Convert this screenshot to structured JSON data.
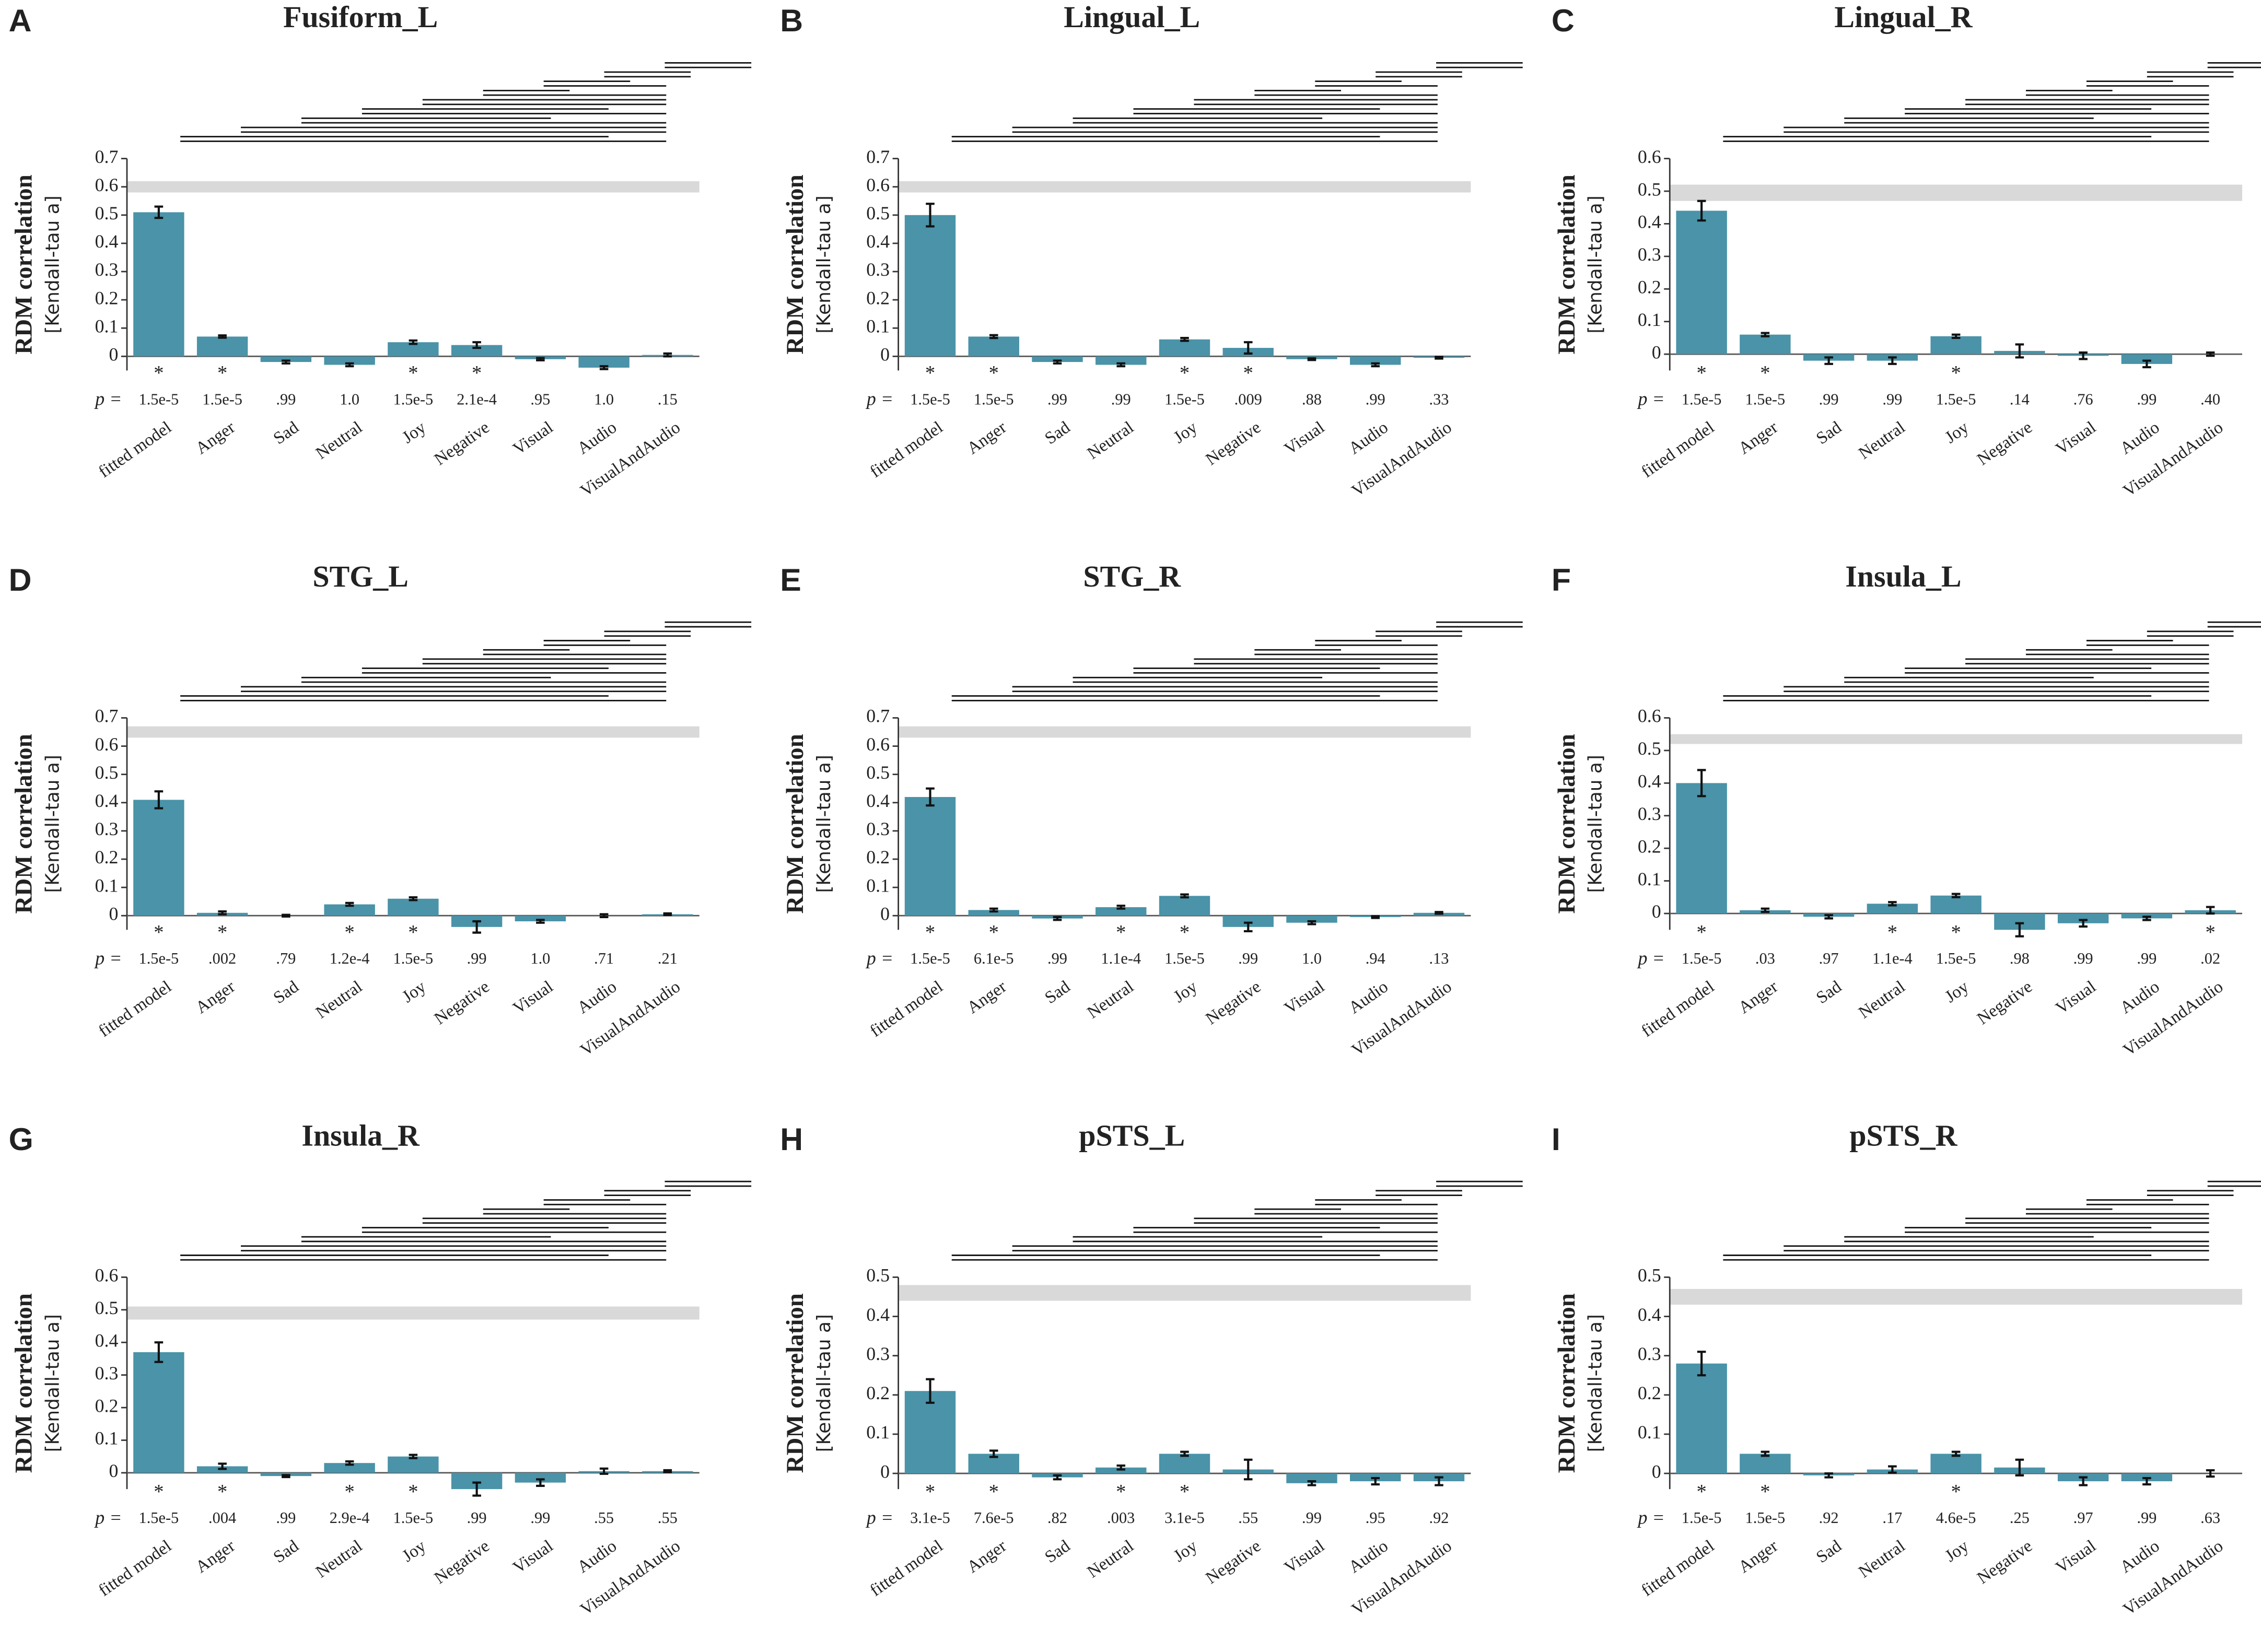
{
  "chart_data": [
    {
      "type": "bar",
      "panel": "A",
      "title": "Fusiform_L",
      "ylabel": "RDM correlation",
      "ylabel2": "[Kendall-tau a]",
      "p_prefix": "p =",
      "color": "#4a93a8",
      "categories": [
        "fitted model",
        "Anger",
        "Sad",
        "Neutral",
        "Joy",
        "Negative",
        "Visual",
        "Audio",
        "VisualAndAudio"
      ],
      "values": [
        0.51,
        0.07,
        -0.02,
        -0.03,
        0.05,
        0.04,
        -0.01,
        -0.04,
        0.005
      ],
      "errors": [
        0.02,
        0.004,
        0.005,
        0.005,
        0.006,
        0.01,
        0.004,
        0.005,
        0.005
      ],
      "stars": [
        "*",
        "*",
        null,
        null,
        "*",
        "*",
        null,
        null,
        null
      ],
      "p_labels": [
        "1.5e-5",
        "1.5e-5",
        ".99",
        "1.0",
        "1.5e-5",
        "2.1e-4",
        ".95",
        "1.0",
        ".15"
      ],
      "noise_ceiling": [
        0.58,
        0.62
      ],
      "ylim": [
        -0.05,
        0.7
      ],
      "yticks": [
        0,
        0.1,
        0.2,
        0.3,
        0.4,
        0.5,
        0.6,
        0.7
      ]
    },
    {
      "type": "bar",
      "panel": "B",
      "title": "Lingual_L",
      "ylabel": "RDM correlation",
      "ylabel2": "[Kendall-tau a]",
      "p_prefix": "p =",
      "color": "#4a93a8",
      "categories": [
        "fitted model",
        "Anger",
        "Sad",
        "Neutral",
        "Joy",
        "Negative",
        "Visual",
        "Audio",
        "VisualAndAudio"
      ],
      "values": [
        0.5,
        0.07,
        -0.02,
        -0.03,
        0.06,
        0.03,
        -0.01,
        -0.03,
        -0.005
      ],
      "errors": [
        0.04,
        0.005,
        0.005,
        0.005,
        0.005,
        0.02,
        0.003,
        0.005,
        0.003
      ],
      "stars": [
        "*",
        "*",
        null,
        null,
        "*",
        "*",
        null,
        null,
        null
      ],
      "p_labels": [
        "1.5e-5",
        "1.5e-5",
        ".99",
        ".99",
        "1.5e-5",
        ".009",
        ".88",
        ".99",
        ".33"
      ],
      "noise_ceiling": [
        0.58,
        0.62
      ],
      "ylim": [
        -0.05,
        0.7
      ],
      "yticks": [
        0,
        0.1,
        0.2,
        0.3,
        0.4,
        0.5,
        0.6,
        0.7
      ]
    },
    {
      "type": "bar",
      "panel": "C",
      "title": "Lingual_R",
      "ylabel": "RDM correlation",
      "ylabel2": "[Kendall-tau a]",
      "p_prefix": "p =",
      "color": "#4a93a8",
      "categories": [
        "fitted model",
        "Anger",
        "Sad",
        "Neutral",
        "Joy",
        "Negative",
        "Visual",
        "Audio",
        "VisualAndAudio"
      ],
      "values": [
        0.44,
        0.06,
        -0.02,
        -0.02,
        0.055,
        0.01,
        -0.005,
        -0.03,
        0
      ],
      "errors": [
        0.03,
        0.005,
        0.01,
        0.01,
        0.005,
        0.02,
        0.01,
        0.01,
        0.005
      ],
      "stars": [
        "*",
        "*",
        null,
        null,
        "*",
        null,
        null,
        null,
        null
      ],
      "p_labels": [
        "1.5e-5",
        "1.5e-5",
        ".99",
        ".99",
        "1.5e-5",
        ".14",
        ".76",
        ".99",
        ".40"
      ],
      "noise_ceiling": [
        0.47,
        0.52
      ],
      "ylim": [
        -0.05,
        0.6
      ],
      "yticks": [
        0,
        0.1,
        0.2,
        0.3,
        0.4,
        0.5,
        0.6
      ]
    },
    {
      "type": "bar",
      "panel": "D",
      "title": "STG_L",
      "ylabel": "RDM correlation",
      "ylabel2": "[Kendall-tau a]",
      "p_prefix": "p =",
      "color": "#4a93a8",
      "categories": [
        "fitted model",
        "Anger",
        "Sad",
        "Neutral",
        "Joy",
        "Negative",
        "Visual",
        "Audio",
        "VisualAndAudio"
      ],
      "values": [
        0.41,
        0.01,
        0,
        0.04,
        0.06,
        -0.04,
        -0.02,
        0,
        0.005
      ],
      "errors": [
        0.03,
        0.005,
        0.003,
        0.005,
        0.005,
        0.02,
        0.005,
        0.005,
        0.003
      ],
      "stars": [
        "*",
        "*",
        null,
        "*",
        "*",
        null,
        null,
        null,
        null
      ],
      "p_labels": [
        "1.5e-5",
        ".002",
        ".79",
        "1.2e-4",
        "1.5e-5",
        ".99",
        "1.0",
        ".71",
        ".21"
      ],
      "noise_ceiling": [
        0.63,
        0.67
      ],
      "ylim": [
        -0.05,
        0.7
      ],
      "yticks": [
        0,
        0.1,
        0.2,
        0.3,
        0.4,
        0.5,
        0.6,
        0.7
      ]
    },
    {
      "type": "bar",
      "panel": "E",
      "title": "STG_R",
      "ylabel": "RDM correlation",
      "ylabel2": "[Kendall-tau a]",
      "p_prefix": "p =",
      "color": "#4a93a8",
      "categories": [
        "fitted model",
        "Anger",
        "Sad",
        "Neutral",
        "Joy",
        "Negative",
        "Visual",
        "Audio",
        "VisualAndAudio"
      ],
      "values": [
        0.42,
        0.02,
        -0.01,
        0.03,
        0.07,
        -0.04,
        -0.025,
        -0.005,
        0.01
      ],
      "errors": [
        0.03,
        0.005,
        0.005,
        0.005,
        0.005,
        0.015,
        0.005,
        0.003,
        0.003
      ],
      "stars": [
        "*",
        "*",
        null,
        "*",
        "*",
        null,
        null,
        null,
        null
      ],
      "p_labels": [
        "1.5e-5",
        "6.1e-5",
        ".99",
        "1.1e-4",
        "1.5e-5",
        ".99",
        "1.0",
        ".94",
        ".13"
      ],
      "noise_ceiling": [
        0.63,
        0.67
      ],
      "ylim": [
        -0.05,
        0.7
      ],
      "yticks": [
        0,
        0.1,
        0.2,
        0.3,
        0.4,
        0.5,
        0.6,
        0.7
      ]
    },
    {
      "type": "bar",
      "panel": "F",
      "title": "Insula_L",
      "ylabel": "RDM correlation",
      "ylabel2": "[Kendall-tau a]",
      "p_prefix": "p =",
      "color": "#4a93a8",
      "categories": [
        "fitted model",
        "Anger",
        "Sad",
        "Neutral",
        "Joy",
        "Negative",
        "Visual",
        "Audio",
        "VisualAndAudio"
      ],
      "values": [
        0.4,
        0.01,
        -0.01,
        0.03,
        0.055,
        -0.05,
        -0.03,
        -0.015,
        0.01
      ],
      "errors": [
        0.04,
        0.005,
        0.005,
        0.005,
        0.005,
        0.02,
        0.01,
        0.005,
        0.01
      ],
      "stars": [
        "*",
        null,
        null,
        "*",
        "*",
        null,
        null,
        null,
        "*"
      ],
      "p_labels": [
        "1.5e-5",
        ".03",
        ".97",
        "1.1e-4",
        "1.5e-5",
        ".98",
        ".99",
        ".99",
        ".02"
      ],
      "noise_ceiling": [
        0.52,
        0.55
      ],
      "ylim": [
        -0.05,
        0.6
      ],
      "yticks": [
        0,
        0.1,
        0.2,
        0.3,
        0.4,
        0.5,
        0.6
      ]
    },
    {
      "type": "bar",
      "panel": "G",
      "title": "Insula_R",
      "ylabel": "RDM correlation",
      "ylabel2": "[Kendall-tau a]",
      "p_prefix": "p =",
      "color": "#4a93a8",
      "categories": [
        "fitted model",
        "Anger",
        "Sad",
        "Neutral",
        "Joy",
        "Negative",
        "Visual",
        "Audio",
        "VisualAndAudio"
      ],
      "values": [
        0.37,
        0.02,
        -0.01,
        0.03,
        0.05,
        -0.05,
        -0.03,
        0.005,
        0.005
      ],
      "errors": [
        0.03,
        0.008,
        0.003,
        0.005,
        0.005,
        0.02,
        0.01,
        0.008,
        0.003
      ],
      "stars": [
        "*",
        "*",
        null,
        "*",
        "*",
        null,
        null,
        null,
        null
      ],
      "p_labels": [
        "1.5e-5",
        ".004",
        ".99",
        "2.9e-4",
        "1.5e-5",
        ".99",
        ".99",
        ".55",
        ".55"
      ],
      "noise_ceiling": [
        0.47,
        0.51
      ],
      "ylim": [
        -0.05,
        0.6
      ],
      "yticks": [
        0,
        0.1,
        0.2,
        0.3,
        0.4,
        0.5,
        0.6
      ]
    },
    {
      "type": "bar",
      "panel": "H",
      "title": "pSTS_L",
      "ylabel": "RDM correlation",
      "ylabel2": "[Kendall-tau a]",
      "p_prefix": "p =",
      "color": "#4a93a8",
      "categories": [
        "fitted model",
        "Anger",
        "Sad",
        "Neutral",
        "Joy",
        "Negative",
        "Visual",
        "Audio",
        "VisualAndAudio"
      ],
      "values": [
        0.21,
        0.05,
        -0.01,
        0.015,
        0.05,
        0.01,
        -0.025,
        -0.02,
        -0.02
      ],
      "errors": [
        0.03,
        0.008,
        0.005,
        0.005,
        0.005,
        0.025,
        0.005,
        0.008,
        0.01
      ],
      "stars": [
        "*",
        "*",
        null,
        "*",
        "*",
        null,
        null,
        null,
        null
      ],
      "p_labels": [
        "3.1e-5",
        "7.6e-5",
        ".82",
        ".003",
        "3.1e-5",
        ".55",
        ".99",
        ".95",
        ".92"
      ],
      "noise_ceiling": [
        0.44,
        0.48
      ],
      "ylim": [
        -0.04,
        0.5
      ],
      "yticks": [
        0,
        0.1,
        0.2,
        0.3,
        0.4,
        0.5
      ]
    },
    {
      "type": "bar",
      "panel": "I",
      "title": "pSTS_R",
      "ylabel": "RDM correlation",
      "ylabel2": "[Kendall-tau a]",
      "p_prefix": "p =",
      "color": "#4a93a8",
      "categories": [
        "fitted model",
        "Anger",
        "Sad",
        "Neutral",
        "Joy",
        "Negative",
        "Visual",
        "Audio",
        "VisualAndAudio"
      ],
      "values": [
        0.28,
        0.05,
        -0.005,
        0.01,
        0.05,
        0.015,
        -0.02,
        -0.02,
        0
      ],
      "errors": [
        0.03,
        0.005,
        0.005,
        0.008,
        0.005,
        0.02,
        0.01,
        0.008,
        0.008
      ],
      "stars": [
        "*",
        "*",
        null,
        null,
        "*",
        null,
        null,
        null,
        null
      ],
      "p_labels": [
        "1.5e-5",
        "1.5e-5",
        ".92",
        ".17",
        "4.6e-5",
        ".25",
        ".97",
        ".99",
        ".63"
      ],
      "noise_ceiling": [
        0.43,
        0.47
      ],
      "ylim": [
        -0.04,
        0.5
      ],
      "yticks": [
        0,
        0.1,
        0.2,
        0.3,
        0.4,
        0.5
      ]
    }
  ]
}
